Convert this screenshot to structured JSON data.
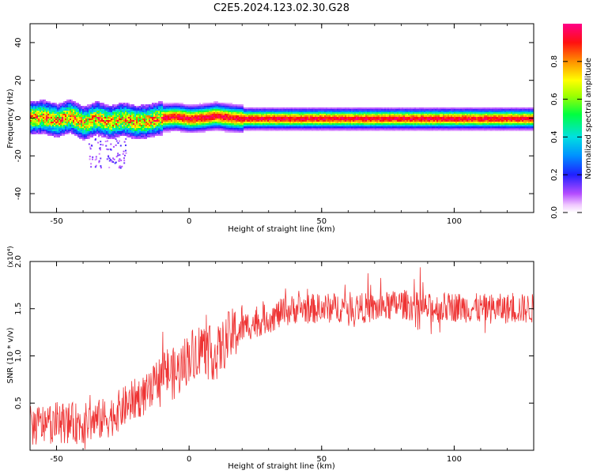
{
  "figure": {
    "title": "C2E5.2024.123.02.30.G28"
  },
  "chart_data": [
    {
      "type": "heatmap",
      "xlabel": "Height of straight line (km)",
      "ylabel": "Frequency (Hz)",
      "xlim": [
        -60,
        130
      ],
      "ylim": [
        -50,
        50
      ],
      "x_ticks": [
        -50,
        0,
        50,
        100
      ],
      "y_ticks": [
        -40,
        -20,
        0,
        20,
        40
      ],
      "grid": false,
      "colorbar": {
        "label": "Normalized spectral amplitude",
        "ticks": [
          "0.0",
          "0.2",
          "0.4",
          "0.6",
          "0.8"
        ],
        "range": [
          0,
          1
        ],
        "colormap": "rainbow (white-violet-blue-cyan-green-yellow-red-magenta)"
      },
      "ridge_frequency_hz": [
        {
          "x": -60,
          "y": 0.5
        },
        {
          "x": -55,
          "y": 1.0
        },
        {
          "x": -50,
          "y": -1.0
        },
        {
          "x": -45,
          "y": 1.5
        },
        {
          "x": -40,
          "y": -2.5
        },
        {
          "x": -35,
          "y": 0.5
        },
        {
          "x": -30,
          "y": -2.0
        },
        {
          "x": -25,
          "y": 0.0
        },
        {
          "x": -20,
          "y": -2.0
        },
        {
          "x": -15,
          "y": -1.0
        },
        {
          "x": -10,
          "y": 0.5
        },
        {
          "x": -5,
          "y": 1.0
        },
        {
          "x": 0,
          "y": 0.0
        },
        {
          "x": 5,
          "y": 0.5
        },
        {
          "x": 10,
          "y": 1.5
        },
        {
          "x": 15,
          "y": 0.5
        },
        {
          "x": 20,
          "y": 0.0
        },
        {
          "x": 130,
          "y": 0.0
        }
      ]
    },
    {
      "type": "line",
      "xlabel": "Height of straight line (km)",
      "ylabel": "SNR (10 * v/v)",
      "y_multiplier": "(x10⁴)",
      "xlim": [
        -60,
        130
      ],
      "ylim": [
        0,
        2.0
      ],
      "x_ticks": [
        -50,
        0,
        50,
        100
      ],
      "y_ticks": [
        "0.5",
        "1.0",
        "1.5",
        "2.0"
      ],
      "grid": false,
      "series": [
        {
          "color": "#ee3333",
          "description_points": [
            {
              "x": -60,
              "y": 0.25
            },
            {
              "x": -50,
              "y": 0.3
            },
            {
              "x": -40,
              "y": 0.28
            },
            {
              "x": -30,
              "y": 0.35
            },
            {
              "x": -25,
              "y": 0.45
            },
            {
              "x": -20,
              "y": 0.55
            },
            {
              "x": -15,
              "y": 0.6
            },
            {
              "x": -10,
              "y": 0.85
            },
            {
              "x": -5,
              "y": 0.8
            },
            {
              "x": 0,
              "y": 1.0
            },
            {
              "x": 5,
              "y": 1.1
            },
            {
              "x": 10,
              "y": 1.0
            },
            {
              "x": 15,
              "y": 1.2
            },
            {
              "x": 20,
              "y": 1.3
            },
            {
              "x": 30,
              "y": 1.4
            },
            {
              "x": 40,
              "y": 1.5
            },
            {
              "x": 50,
              "y": 1.5
            },
            {
              "x": 60,
              "y": 1.52
            },
            {
              "x": 70,
              "y": 1.5
            },
            {
              "x": 80,
              "y": 1.55
            },
            {
              "x": 90,
              "y": 1.5
            },
            {
              "x": 100,
              "y": 1.52
            },
            {
              "x": 110,
              "y": 1.5
            },
            {
              "x": 120,
              "y": 1.5
            },
            {
              "x": 130,
              "y": 1.5
            }
          ]
        }
      ]
    }
  ]
}
